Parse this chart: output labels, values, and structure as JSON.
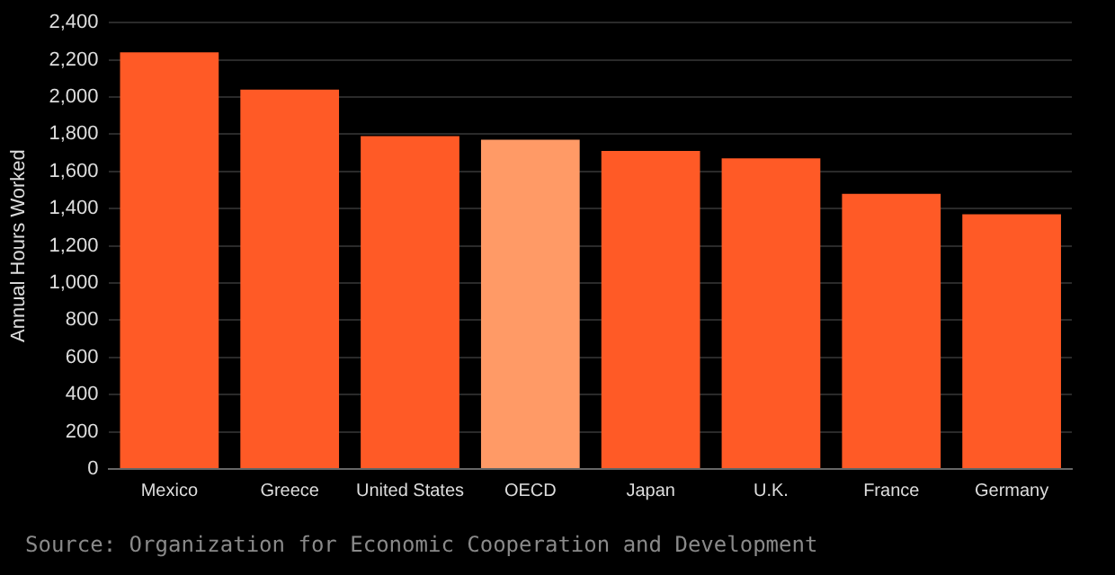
{
  "chart_data": {
    "type": "bar",
    "ylabel": "Annual Hours Worked",
    "categories": [
      "Mexico",
      "Greece",
      "United States",
      "OECD",
      "Japan",
      "U.K.",
      "France",
      "Germany"
    ],
    "values": [
      2240,
      2040,
      1790,
      1770,
      1710,
      1670,
      1480,
      1370
    ],
    "colors": [
      "#ff5a26",
      "#ff5a26",
      "#ff5a26",
      "#ff9a66",
      "#ff5a26",
      "#ff5a26",
      "#ff5a26",
      "#ff5a26"
    ],
    "ylim": [
      0,
      2400
    ],
    "yticks": [
      0,
      200,
      400,
      600,
      800,
      {
        "value": 1000,
        "label": "1,000"
      },
      {
        "value": 1200,
        "label": "1,200"
      },
      {
        "value": 1400,
        "label": "1,400"
      },
      {
        "value": 1600,
        "label": "1,600"
      },
      {
        "value": 1800,
        "label": "1,800"
      },
      {
        "value": 2000,
        "label": "2,000"
      },
      {
        "value": 2200,
        "label": "2,200"
      },
      {
        "value": 2400,
        "label": "2,400"
      }
    ],
    "grid": "y",
    "legend": false,
    "annotations": [
      "Source: Organization for Economic Cooperation and Development"
    ]
  }
}
